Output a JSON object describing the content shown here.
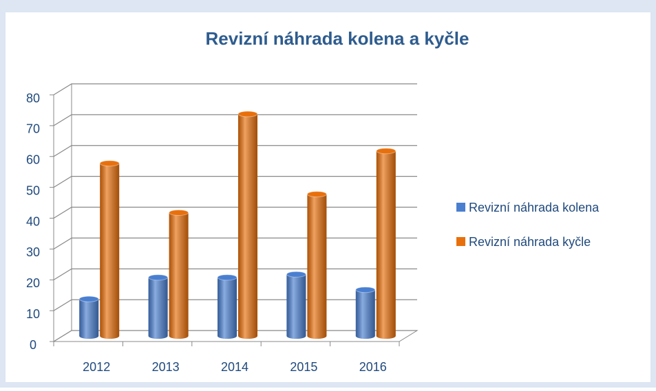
{
  "chart_data": {
    "type": "bar3d",
    "title": "Revizní náhrada kolena a kyčle",
    "categories": [
      "2012",
      "2013",
      "2014",
      "2015",
      "2016"
    ],
    "series": [
      {
        "name": "Revizní náhrada kolena",
        "color": "#4a7fd0",
        "values": [
          12,
          19,
          19,
          20,
          15
        ]
      },
      {
        "name": "Revizní náhrada kyčle",
        "color": "#e8700c",
        "values": [
          56,
          40,
          72,
          46,
          60
        ]
      }
    ],
    "ylim": [
      0,
      80
    ],
    "yticks": [
      0,
      10,
      20,
      30,
      40,
      50,
      60,
      70,
      80
    ],
    "grid": true,
    "legend": "right"
  }
}
